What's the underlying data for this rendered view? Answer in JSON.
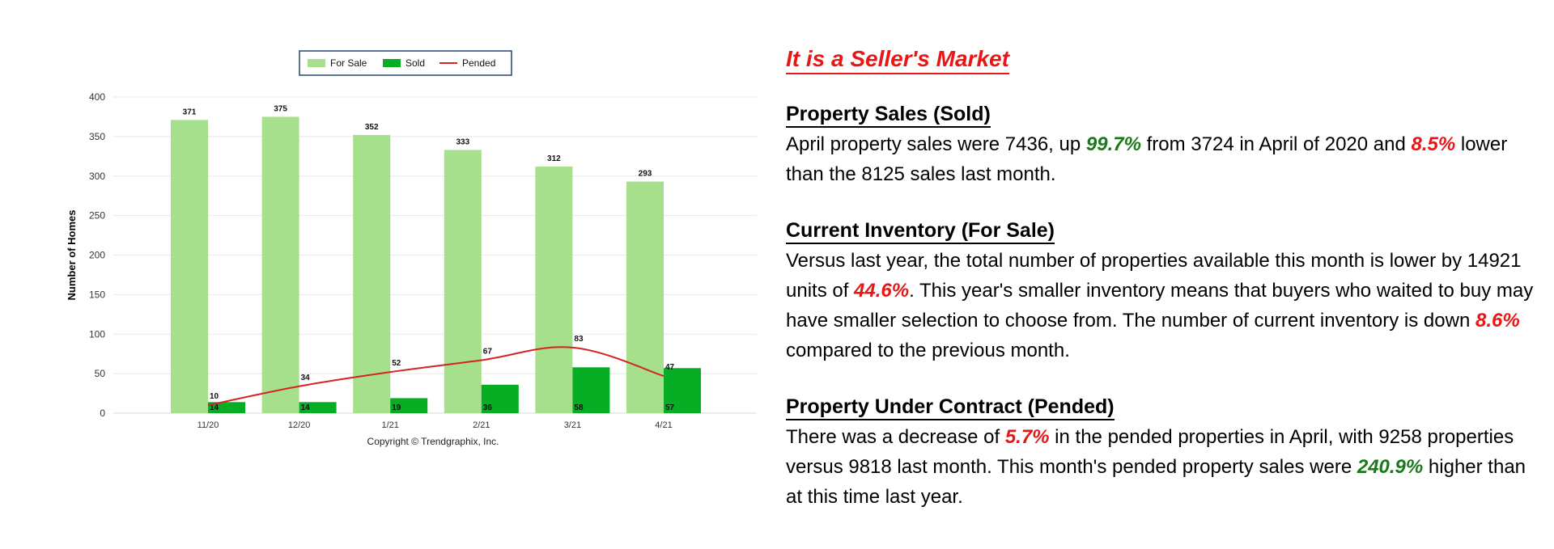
{
  "chart_data": {
    "type": "bar",
    "categories": [
      "11/20",
      "12/20",
      "1/21",
      "2/21",
      "3/21",
      "4/21"
    ],
    "series": [
      {
        "name": "For Sale",
        "kind": "bar",
        "color": "#a6e08c",
        "values": [
          371,
          375,
          352,
          333,
          312,
          293
        ]
      },
      {
        "name": "Sold",
        "kind": "bar",
        "color": "#07ad23",
        "values": [
          14,
          14,
          19,
          36,
          58,
          57
        ]
      },
      {
        "name": "Pended",
        "kind": "line",
        "color": "#d42424",
        "values": [
          10,
          34,
          52,
          67,
          83,
          47
        ]
      }
    ],
    "ylabel": "Number of Homes",
    "ylim": [
      0,
      400
    ],
    "yticks": [
      0,
      50,
      100,
      150,
      200,
      250,
      300,
      350,
      400
    ],
    "grid": true,
    "legend_position": "top-center",
    "copyright": "Copyright © Trendgraphix, Inc."
  },
  "text": {
    "headline": "It is a Seller's Market",
    "sections": [
      {
        "title": "Property Sales (Sold)",
        "parts": [
          {
            "t": "April property sales were 7436, up "
          },
          {
            "t": "99.7%",
            "s": "up"
          },
          {
            "t": " from 3724 in April of 2020 and "
          },
          {
            "t": "8.5%",
            "s": "down"
          },
          {
            "t": " lower than the 8125 sales last month."
          }
        ]
      },
      {
        "title": "Current Inventory (For Sale)",
        "parts": [
          {
            "t": "Versus last year, the total number of properties available this month is lower by 14921 units of "
          },
          {
            "t": "44.6%",
            "s": "down"
          },
          {
            "t": ". This year's smaller inventory means that buyers who waited to buy may have smaller selection to choose from. The number of current inventory is down "
          },
          {
            "t": "8.6%",
            "s": "down"
          },
          {
            "t": " compared to the previous month."
          }
        ]
      },
      {
        "title": "Property Under Contract (Pended)",
        "parts": [
          {
            "t": "There was a decrease of "
          },
          {
            "t": "5.7%",
            "s": "down"
          },
          {
            "t": " in the pended properties in April, with 9258 properties versus 9818 last month. This month's pended property sales were "
          },
          {
            "t": "240.9%",
            "s": "up"
          },
          {
            "t": " higher than at this time last year."
          }
        ]
      }
    ]
  }
}
